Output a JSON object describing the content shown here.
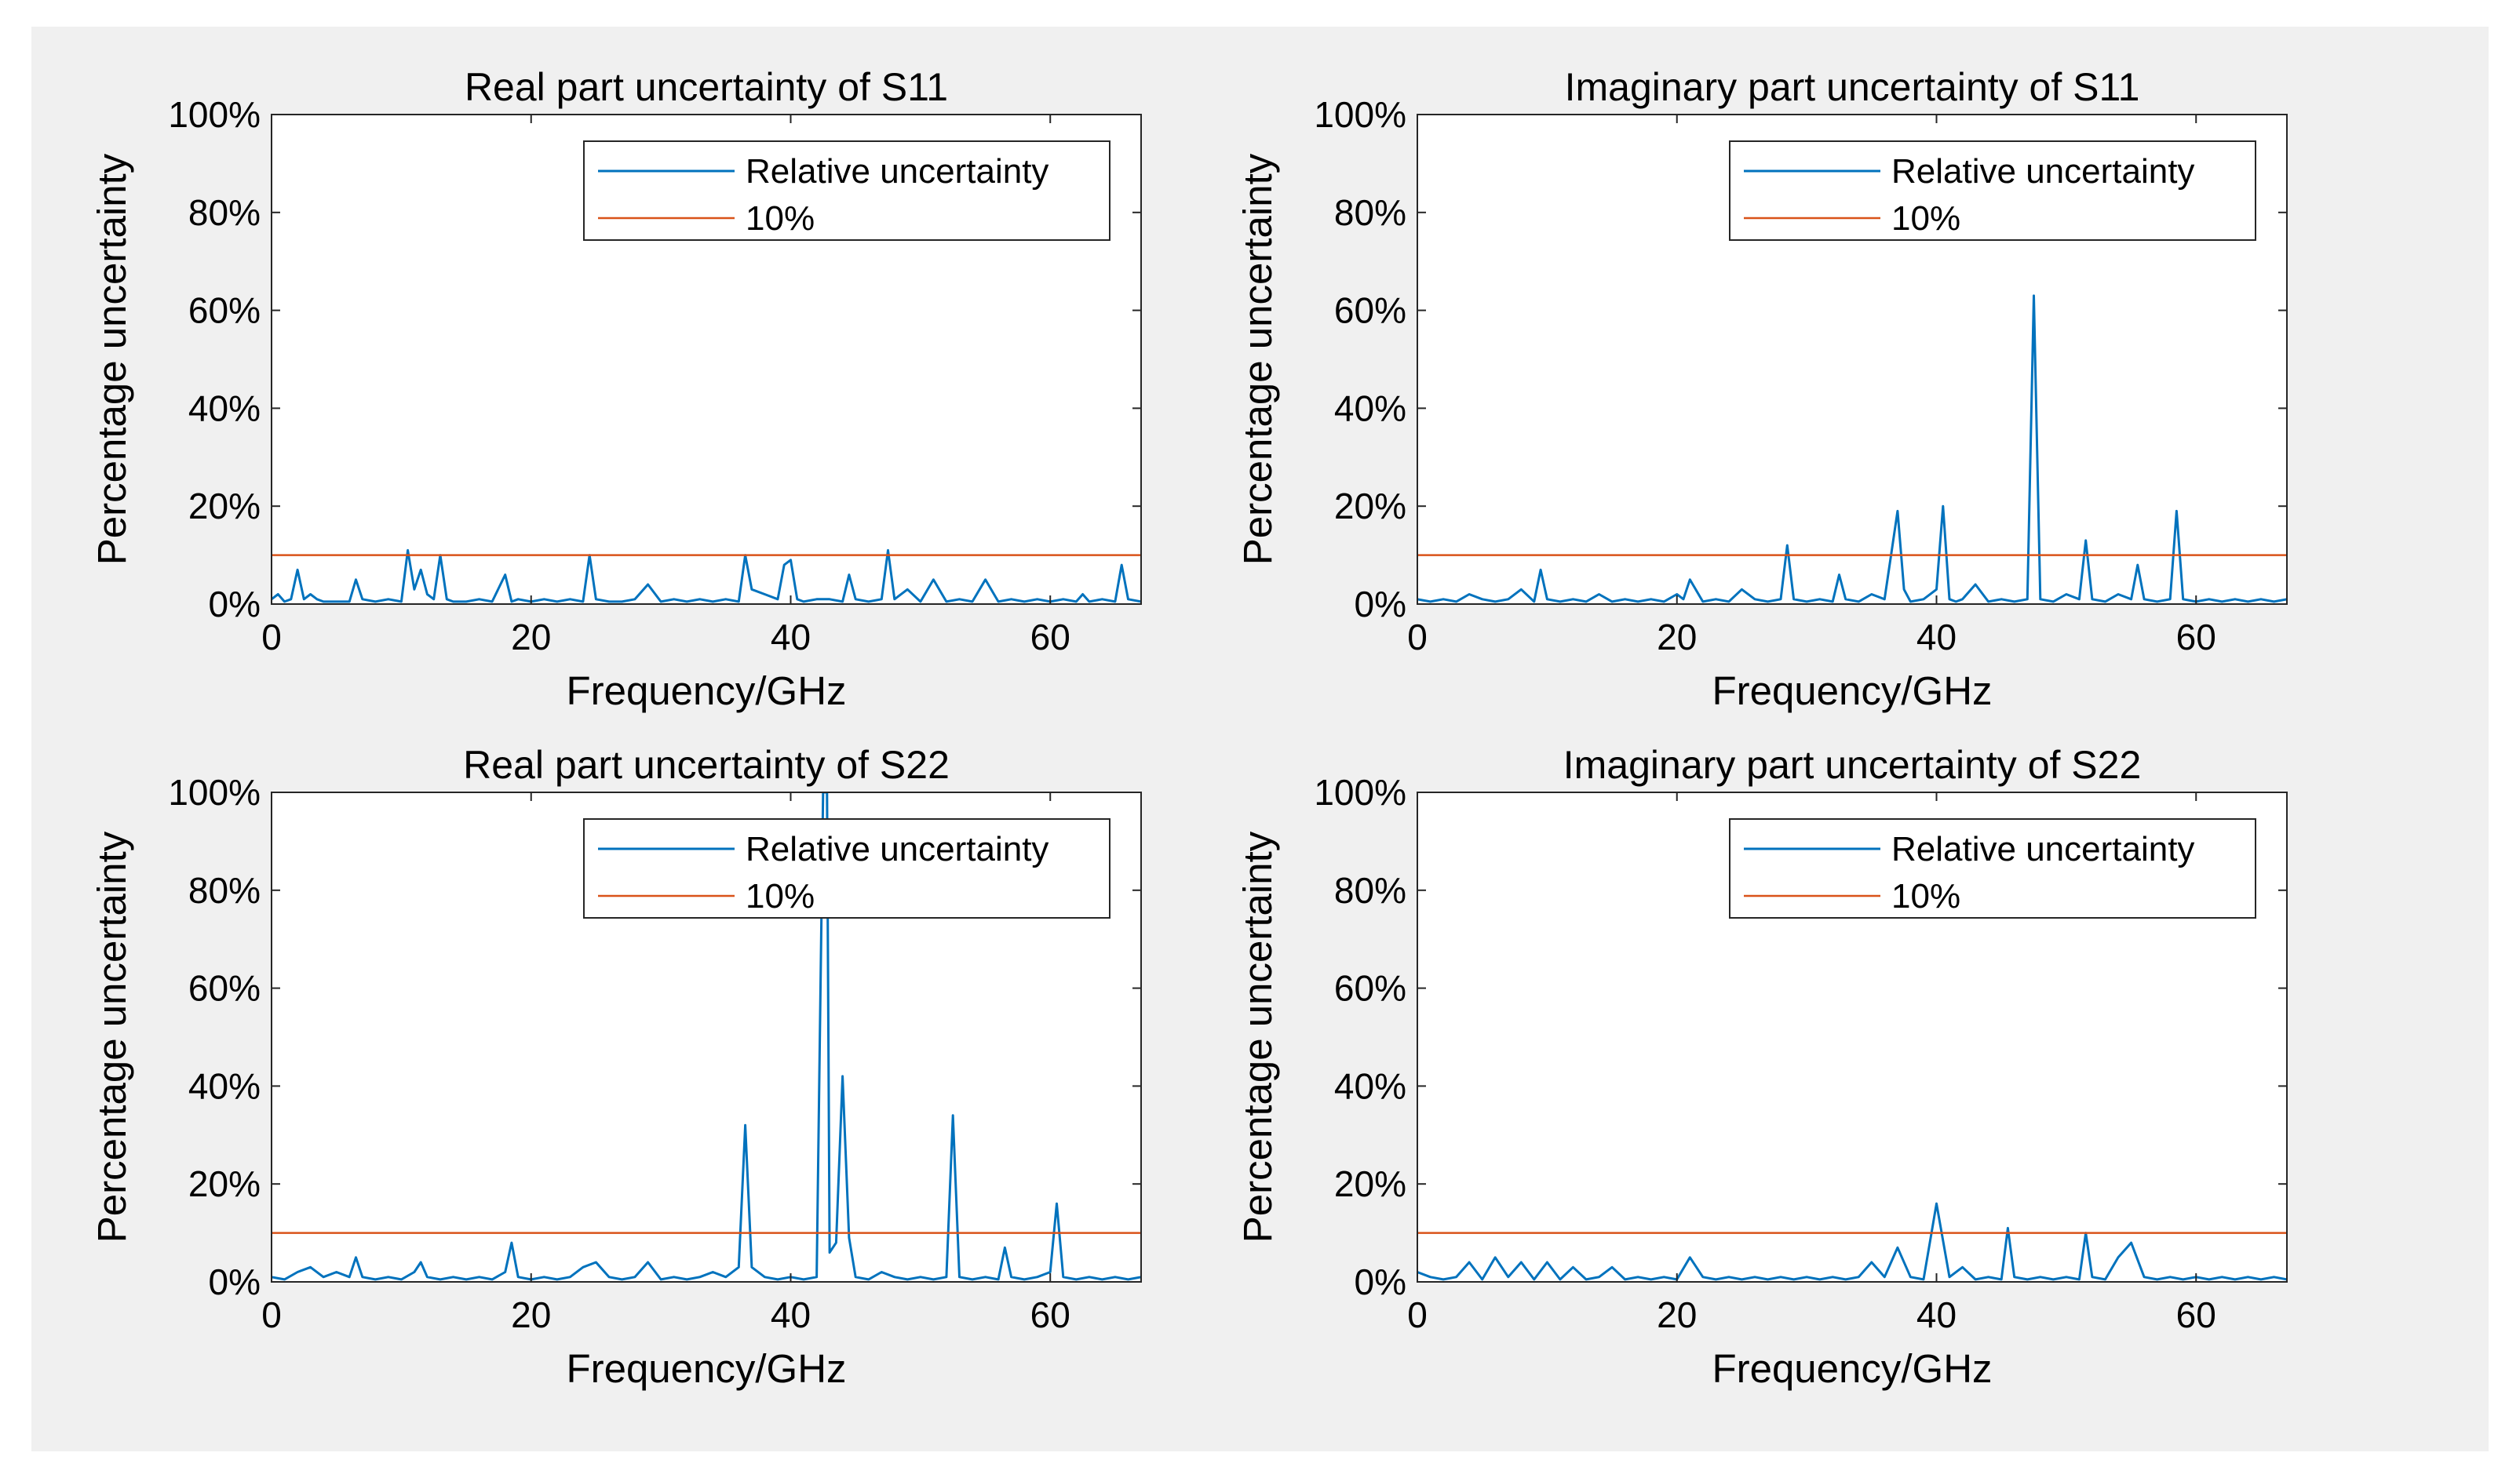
{
  "figure": {
    "background": "#f0f0f0",
    "axes_background": "#ffffff",
    "series_color": "#0072bd",
    "threshold_color": "#d95319"
  },
  "chart_data": [
    {
      "type": "line",
      "title": "Real part uncertainty of S11",
      "xlabel": "Frequency/GHz",
      "ylabel": "Percentage uncertainty",
      "xlim": [
        0,
        67
      ],
      "ylim": [
        0,
        100
      ],
      "xticks": [
        0,
        20,
        40,
        60
      ],
      "xtick_labels": [
        "0",
        "20",
        "40",
        "60"
      ],
      "yticks": [
        0,
        20,
        40,
        60,
        80,
        100
      ],
      "ytick_labels": [
        "0%",
        "20%",
        "40%",
        "60%",
        "80%",
        "100%"
      ],
      "grid": false,
      "legend": {
        "location": "top-right",
        "entries": [
          "Relative uncertainty",
          "10%"
        ]
      },
      "threshold": 10,
      "series": [
        {
          "name": "Relative uncertainty",
          "x": [
            0,
            0.5,
            1,
            1.5,
            2,
            2.5,
            3,
            3.5,
            4,
            5,
            6,
            6.5,
            7,
            8,
            9,
            10,
            10.5,
            11,
            11.5,
            12,
            12.5,
            13,
            13.5,
            14,
            15,
            16,
            17,
            18,
            18.5,
            19,
            20,
            21,
            22,
            23,
            24,
            24.5,
            25,
            26,
            27,
            28,
            29,
            30,
            31,
            32,
            33,
            34,
            35,
            36,
            36.5,
            37,
            38,
            39,
            39.5,
            40,
            40.5,
            41,
            42,
            43,
            44,
            44.5,
            45,
            46,
            47,
            47.5,
            48,
            49,
            50,
            51,
            52,
            53,
            54,
            55,
            56,
            57,
            58,
            59,
            60,
            61,
            62,
            62.5,
            63,
            64,
            65,
            65.5,
            66,
            67
          ],
          "values": [
            1,
            2,
            0.5,
            1,
            7,
            1,
            2,
            1,
            0.5,
            0.5,
            0.5,
            5,
            1,
            0.5,
            1,
            0.5,
            11,
            3,
            7,
            2,
            1,
            10,
            1,
            0.5,
            0.5,
            1,
            0.5,
            6,
            0.5,
            1,
            0.5,
            1,
            0.5,
            1,
            0.5,
            10,
            1,
            0.5,
            0.5,
            1,
            4,
            0.5,
            1,
            0.5,
            1,
            0.5,
            1,
            0.5,
            10,
            3,
            2,
            1,
            8,
            9,
            1,
            0.5,
            1,
            1,
            0.5,
            6,
            1,
            0.5,
            1,
            11,
            1,
            3,
            0.5,
            5,
            0.5,
            1,
            0.5,
            5,
            0.5,
            1,
            0.5,
            1,
            0.5,
            1,
            0.5,
            2,
            0.5,
            1,
            0.5,
            8,
            1,
            0.5
          ]
        },
        {
          "name": "10%",
          "x": [
            0,
            67
          ],
          "values": [
            10,
            10
          ]
        }
      ]
    },
    {
      "type": "line",
      "title": "Imaginary part uncertainty of S11",
      "xlabel": "Frequency/GHz",
      "ylabel": "Percentage uncertainty",
      "xlim": [
        0,
        67
      ],
      "ylim": [
        0,
        100
      ],
      "xticks": [
        0,
        20,
        40,
        60
      ],
      "xtick_labels": [
        "0",
        "20",
        "40",
        "60"
      ],
      "yticks": [
        0,
        20,
        40,
        60,
        80,
        100
      ],
      "ytick_labels": [
        "0%",
        "20%",
        "40%",
        "60%",
        "80%",
        "100%"
      ],
      "grid": false,
      "legend": {
        "location": "top-right",
        "entries": [
          "Relative uncertainty",
          "10%"
        ]
      },
      "threshold": 10,
      "series": [
        {
          "name": "Relative uncertainty",
          "x": [
            0,
            1,
            2,
            3,
            4,
            5,
            6,
            7,
            8,
            9,
            9.5,
            10,
            11,
            12,
            13,
            14,
            15,
            16,
            17,
            18,
            19,
            20,
            20.5,
            21,
            22,
            23,
            24,
            25,
            26,
            27,
            28,
            28.5,
            29,
            30,
            31,
            32,
            32.5,
            33,
            34,
            35,
            36,
            37,
            37.5,
            38,
            39,
            40,
            40.5,
            41,
            41.5,
            42,
            43,
            44,
            45,
            46,
            47,
            47.5,
            48,
            49,
            50,
            51,
            51.5,
            52,
            53,
            54,
            55,
            55.5,
            56,
            57,
            58,
            58.5,
            59,
            60,
            61,
            62,
            63,
            64,
            65,
            66,
            67
          ],
          "values": [
            1,
            0.5,
            1,
            0.5,
            2,
            1,
            0.5,
            1,
            3,
            0.5,
            7,
            1,
            0.5,
            1,
            0.5,
            2,
            0.5,
            1,
            0.5,
            1,
            0.5,
            2,
            1,
            5,
            0.5,
            1,
            0.5,
            3,
            1,
            0.5,
            1,
            12,
            1,
            0.5,
            1,
            0.5,
            6,
            1,
            0.5,
            2,
            1,
            19,
            3,
            0.5,
            1,
            3,
            20,
            1,
            0.5,
            1,
            4,
            0.5,
            1,
            0.5,
            1,
            63,
            1,
            0.5,
            2,
            1,
            13,
            1,
            0.5,
            2,
            1,
            8,
            1,
            0.5,
            1,
            19,
            1,
            0.5,
            1,
            0.5,
            1,
            0.5,
            1,
            0.5,
            1
          ]
        },
        {
          "name": "10%",
          "x": [
            0,
            67
          ],
          "values": [
            10,
            10
          ]
        }
      ]
    },
    {
      "type": "line",
      "title": "Real part uncertainty of S22",
      "xlabel": "Frequency/GHz",
      "ylabel": "Percentage uncertainty",
      "xlim": [
        0,
        67
      ],
      "ylim": [
        0,
        100
      ],
      "xticks": [
        0,
        20,
        40,
        60
      ],
      "xtick_labels": [
        "0",
        "20",
        "40",
        "60"
      ],
      "yticks": [
        0,
        20,
        40,
        60,
        80,
        100
      ],
      "ytick_labels": [
        "0%",
        "20%",
        "40%",
        "60%",
        "80%",
        "100%"
      ],
      "grid": false,
      "legend": {
        "location": "top-right",
        "entries": [
          "Relative uncertainty",
          "10%"
        ]
      },
      "threshold": 10,
      "series": [
        {
          "name": "Relative uncertainty",
          "x": [
            0,
            1,
            2,
            3,
            4,
            5,
            6,
            6.5,
            7,
            8,
            9,
            10,
            11,
            11.5,
            12,
            13,
            14,
            15,
            16,
            17,
            18,
            18.5,
            19,
            20,
            21,
            22,
            23,
            24,
            25,
            26,
            27,
            28,
            29,
            30,
            31,
            32,
            33,
            34,
            35,
            36,
            36.5,
            37,
            38,
            39,
            40,
            41,
            42,
            42.5,
            42.8,
            43,
            43.5,
            44,
            44.5,
            45,
            46,
            47,
            48,
            49,
            50,
            51,
            52,
            52.5,
            53,
            54,
            55,
            56,
            56.5,
            57,
            58,
            59,
            60,
            60.5,
            61,
            62,
            63,
            64,
            65,
            66,
            67
          ],
          "values": [
            1,
            0.5,
            2,
            3,
            1,
            2,
            1,
            5,
            1,
            0.5,
            1,
            0.5,
            2,
            4,
            1,
            0.5,
            1,
            0.5,
            1,
            0.5,
            2,
            8,
            1,
            0.5,
            1,
            0.5,
            1,
            3,
            4,
            1,
            0.5,
            1,
            4,
            0.5,
            1,
            0.5,
            1,
            2,
            1,
            3,
            32,
            3,
            1,
            0.5,
            1,
            0.5,
            1,
            100,
            100,
            6,
            8,
            42,
            9,
            1,
            0.5,
            2,
            1,
            0.5,
            1,
            0.5,
            1,
            34,
            1,
            0.5,
            1,
            0.5,
            7,
            1,
            0.5,
            1,
            2,
            16,
            1,
            0.5,
            1,
            0.5,
            1,
            0.5,
            1
          ]
        },
        {
          "name": "10%",
          "x": [
            0,
            67
          ],
          "values": [
            10,
            10
          ]
        }
      ]
    },
    {
      "type": "line",
      "title": "Imaginary part uncertainty of S22",
      "xlabel": "Frequency/GHz",
      "ylabel": "Percentage uncertainty",
      "xlim": [
        0,
        67
      ],
      "ylim": [
        0,
        100
      ],
      "xticks": [
        0,
        20,
        40,
        60
      ],
      "xtick_labels": [
        "0",
        "20",
        "40",
        "60"
      ],
      "yticks": [
        0,
        20,
        40,
        60,
        80,
        100
      ],
      "ytick_labels": [
        "0%",
        "20%",
        "40%",
        "60%",
        "80%",
        "100%"
      ],
      "grid": false,
      "legend": {
        "location": "top-right",
        "entries": [
          "Relative uncertainty",
          "10%"
        ]
      },
      "threshold": 10,
      "series": [
        {
          "name": "Relative uncertainty",
          "x": [
            0,
            1,
            2,
            3,
            4,
            5,
            6,
            7,
            8,
            9,
            10,
            11,
            12,
            13,
            14,
            15,
            16,
            17,
            18,
            19,
            20,
            21,
            22,
            23,
            24,
            25,
            26,
            27,
            28,
            29,
            30,
            31,
            32,
            33,
            34,
            35,
            36,
            37,
            38,
            39,
            40,
            41,
            42,
            43,
            44,
            45,
            45.5,
            46,
            47,
            48,
            49,
            50,
            51,
            51.5,
            52,
            53,
            54,
            55,
            56,
            57,
            58,
            59,
            60,
            61,
            62,
            63,
            64,
            65,
            66,
            67
          ],
          "values": [
            2,
            1,
            0.5,
            1,
            4,
            0.5,
            5,
            1,
            4,
            0.5,
            4,
            0.5,
            3,
            0.5,
            1,
            3,
            0.5,
            1,
            0.5,
            1,
            0.5,
            5,
            1,
            0.5,
            1,
            0.5,
            1,
            0.5,
            1,
            0.5,
            1,
            0.5,
            1,
            0.5,
            1,
            4,
            1,
            7,
            1,
            0.5,
            16,
            1,
            3,
            0.5,
            1,
            0.5,
            11,
            1,
            0.5,
            1,
            0.5,
            1,
            0.5,
            10,
            1,
            0.5,
            5,
            8,
            1,
            0.5,
            1,
            0.5,
            1,
            0.5,
            1,
            0.5,
            1,
            0.5,
            1,
            0.5
          ]
        },
        {
          "name": "10%",
          "x": [
            0,
            67
          ],
          "values": [
            10,
            10
          ]
        }
      ]
    }
  ]
}
